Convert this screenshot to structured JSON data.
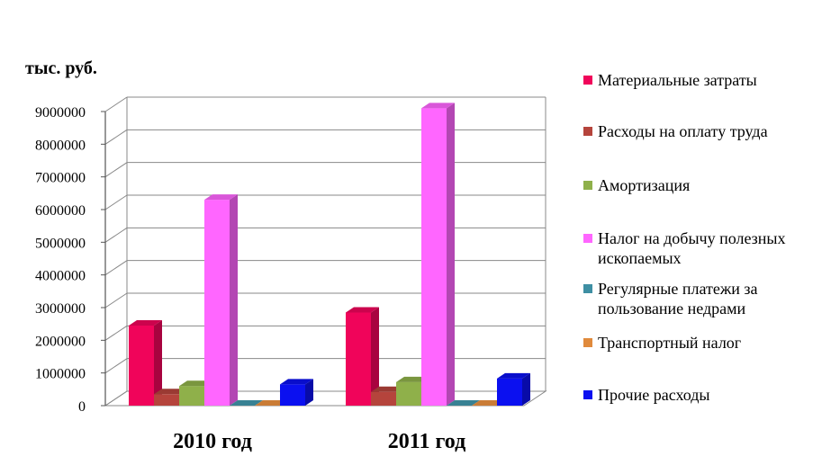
{
  "chart_data": {
    "type": "bar",
    "unit_label": "тыс. руб.",
    "categories": [
      "2010 год",
      "2011 год"
    ],
    "ylim": [
      0,
      9000000
    ],
    "yticks": [
      0,
      1000000,
      2000000,
      3000000,
      4000000,
      5000000,
      6000000,
      7000000,
      8000000,
      9000000
    ],
    "grid": true,
    "legend_position": "right",
    "series": [
      {
        "name": "Материальные затраты",
        "color": "#f0045a",
        "values": [
          2450000,
          2850000
        ]
      },
      {
        "name": "Расходы на оплату труда",
        "color": "#b5443c",
        "values": [
          350000,
          420000
        ]
      },
      {
        "name": "Амортизация",
        "color": "#8fb04a",
        "values": [
          600000,
          720000
        ]
      },
      {
        "name": "Налог на добычу полезных ископаемых",
        "color": "#ff66ff",
        "values": [
          6300000,
          9100000
        ]
      },
      {
        "name": "Регулярные платежи за пользование недрами",
        "color": "#3e8fa3",
        "values": [
          0,
          0
        ]
      },
      {
        "name": "Транспортный налог",
        "color": "#e08a3c",
        "values": [
          0,
          0
        ]
      },
      {
        "name": "Прочие расходы",
        "color": "#0b10f0",
        "values": [
          650000,
          830000
        ]
      }
    ]
  }
}
